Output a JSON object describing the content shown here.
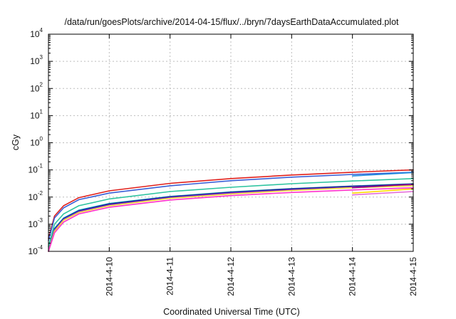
{
  "chart_data": {
    "type": "line",
    "title": "/data/run/goesPlots/archive/2014-04-15/flux/../bryn/7daysEarthDataAccumulated.plot",
    "xlabel": "Coordinated Universal Time (UTC)",
    "ylabel": "cGy",
    "y_scale": "log",
    "ylim": [
      0.0001,
      10000
    ],
    "y_ticks": [
      {
        "base": "10",
        "exp": "-4"
      },
      {
        "base": "10",
        "exp": "-3"
      },
      {
        "base": "10",
        "exp": "-2"
      },
      {
        "base": "10",
        "exp": "-1"
      },
      {
        "base": "10",
        "exp": "0"
      },
      {
        "base": "10",
        "exp": "1"
      },
      {
        "base": "10",
        "exp": "2"
      },
      {
        "base": "10",
        "exp": "3"
      },
      {
        "base": "10",
        "exp": "4"
      }
    ],
    "xlim": [
      "2014-04-09",
      "2014-04-15"
    ],
    "x_ticks": [
      "2014-4-10",
      "2014-4-11",
      "2014-4-12",
      "2014-4-13",
      "2014-4-14",
      "2014-4-15"
    ],
    "grid": true,
    "legend": "none",
    "series": [
      {
        "color": "#e0201c",
        "x": [
          "2014-04-09T00:00",
          "2014-04-09T02:24",
          "2014-04-09T06:00",
          "2014-04-09T12:00",
          "2014-04-10T00:00",
          "2014-04-11T00:00",
          "2014-04-12T00:00",
          "2014-04-13T00:00",
          "2014-04-14T00:00",
          "2014-04-15T00:00"
        ],
        "values": [
          0.0003,
          0.002,
          0.0048,
          0.0095,
          0.017,
          0.032,
          0.048,
          0.065,
          0.082,
          0.1
        ]
      },
      {
        "color": "#3a5fd6",
        "x": [
          "2014-04-09T00:00",
          "2014-04-09T02:24",
          "2014-04-09T06:00",
          "2014-04-09T12:00",
          "2014-04-10T00:00",
          "2014-04-11T00:00",
          "2014-04-12T00:00",
          "2014-04-13T00:00",
          "2014-04-14T00:00",
          "2014-04-15T00:00"
        ],
        "values": [
          0.00025,
          0.0017,
          0.004,
          0.008,
          0.014,
          0.026,
          0.04,
          0.054,
          0.068,
          0.082
        ]
      },
      {
        "color": "#1f8fe0",
        "x": [
          "2014-04-14T00:00",
          "2014-04-15T00:00"
        ],
        "values": [
          0.06,
          0.08
        ]
      },
      {
        "color": "#2ec4a0",
        "x": [
          "2014-04-09T00:00",
          "2014-04-09T02:24",
          "2014-04-09T06:00",
          "2014-04-09T12:00",
          "2014-04-10T00:00",
          "2014-04-11T00:00",
          "2014-04-12T00:00",
          "2014-04-13T00:00",
          "2014-04-14T00:00",
          "2014-04-15T00:00"
        ],
        "values": [
          0.00015,
          0.001,
          0.0024,
          0.0048,
          0.0085,
          0.016,
          0.023,
          0.031,
          0.039,
          0.048
        ]
      },
      {
        "color": "#00a5c8",
        "x": [
          "2014-04-09T00:00",
          "2014-04-09T02:24",
          "2014-04-09T06:00",
          "2014-04-09T12:00",
          "2014-04-10T00:00",
          "2014-04-11T00:00",
          "2014-04-12T00:00",
          "2014-04-13T00:00",
          "2014-04-14T00:00",
          "2014-04-15T00:00"
        ],
        "values": [
          0.0001,
          0.0007,
          0.0017,
          0.0033,
          0.0058,
          0.0105,
          0.0155,
          0.0205,
          0.0255,
          0.031
        ]
      },
      {
        "color": "#222288",
        "x": [
          "2014-04-09T00:00",
          "2014-04-09T02:24",
          "2014-04-09T06:00",
          "2014-04-09T12:00",
          "2014-04-10T00:00",
          "2014-04-11T00:00",
          "2014-04-12T00:00",
          "2014-04-13T00:00",
          "2014-04-14T00:00",
          "2014-04-15T00:00"
        ],
        "values": [
          0.0001,
          0.00065,
          0.0016,
          0.0031,
          0.0055,
          0.0102,
          0.015,
          0.02,
          0.025,
          0.03
        ]
      },
      {
        "color": "#8a2be2",
        "x": [
          "2014-04-09T00:00",
          "2014-04-09T02:24",
          "2014-04-09T06:00",
          "2014-04-09T12:00",
          "2014-04-10T00:00",
          "2014-04-11T00:00",
          "2014-04-12T00:00",
          "2014-04-13T00:00",
          "2014-04-14T00:00",
          "2014-04-15T00:00"
        ],
        "values": [
          0.0001,
          0.0006,
          0.0015,
          0.0029,
          0.0051,
          0.0095,
          0.014,
          0.0185,
          0.023,
          0.028
        ]
      },
      {
        "color": "#f0e030",
        "x": [
          "2014-04-09T00:00",
          "2014-04-09T02:24",
          "2014-04-09T06:00",
          "2014-04-09T12:00",
          "2014-04-10T00:00",
          "2014-04-11T00:00",
          "2014-04-12T00:00",
          "2014-04-13T00:00",
          "2014-04-14T00:00",
          "2014-04-15T00:00"
        ],
        "values": [
          0.0001,
          0.00055,
          0.0014,
          0.0027,
          0.0048,
          0.009,
          0.013,
          0.0175,
          0.022,
          0.026
        ]
      },
      {
        "color": "#ff33cc",
        "x": [
          "2014-04-09T00:00",
          "2014-04-09T02:24",
          "2014-04-09T06:00",
          "2014-04-09T12:00",
          "2014-04-10T00:00",
          "2014-04-11T00:00",
          "2014-04-12T00:00",
          "2014-04-13T00:00",
          "2014-04-14T00:00",
          "2014-04-15T00:00"
        ],
        "values": [
          0.0001,
          0.00048,
          0.0012,
          0.0024,
          0.0042,
          0.0078,
          0.0113,
          0.0148,
          0.0182,
          0.022
        ]
      },
      {
        "color": "#e36ad8",
        "x": [
          "2014-04-14T00:00",
          "2014-04-15T00:00"
        ],
        "values": [
          0.012,
          0.016
        ]
      },
      {
        "color": "#ffd700",
        "x": [
          "2014-04-14T00:00",
          "2014-04-15T00:00"
        ],
        "values": [
          0.014,
          0.02
        ]
      },
      {
        "color": "#8b008b",
        "x": [
          "2014-04-14T00:00",
          "2014-04-15T00:00"
        ],
        "values": [
          0.022,
          0.03
        ]
      }
    ]
  }
}
